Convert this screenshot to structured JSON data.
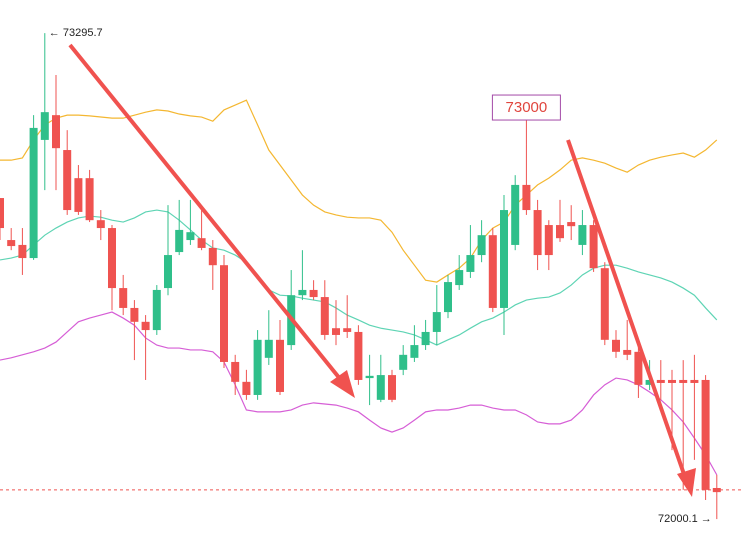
{
  "chart_data": {
    "type": "candlestick",
    "ylim": [
      71955,
      73384
    ],
    "up_color": "#2fbf8a",
    "down_color": "#ef5350",
    "open": [
      72856,
      72744,
      72731,
      72696,
      73011,
      73077,
      72984,
      72909,
      72909,
      72797,
      72776,
      72616,
      72563,
      72526,
      72504,
      72616,
      72712,
      72744,
      72749,
      72723,
      72677,
      72419,
      72366,
      72331,
      72430,
      72478,
      72464,
      72597,
      72611,
      72592,
      72509,
      72509,
      72499,
      72376,
      72318,
      72384,
      72398,
      72430,
      72464,
      72499,
      72552,
      72624,
      72659,
      72704,
      72757,
      72563,
      72731,
      72891,
      72824,
      72784,
      72784,
      72792,
      72731,
      72784,
      72669,
      72478,
      72451,
      72446,
      72358,
      72371,
      72371,
      72371,
      72371,
      72371,
      72083
    ],
    "high": [
      72856,
      72776,
      72776,
      73077,
      73295.7,
      73184,
      73037,
      72944,
      72931,
      72824,
      72784,
      72651,
      72584,
      72544,
      72624,
      72837,
      72851,
      72851,
      72824,
      72744,
      72704,
      72438,
      72398,
      72504,
      72557,
      72531,
      72664,
      72717,
      72637,
      72637,
      72584,
      72597,
      72517,
      72438,
      72438,
      72398,
      72464,
      72517,
      72531,
      72624,
      72651,
      72704,
      72784,
      72797,
      72776,
      72864,
      72917,
      73000,
      72851,
      72797,
      72851,
      72837,
      72824,
      72797,
      72685,
      72504,
      72531,
      72478,
      72424,
      72424,
      72398,
      72424,
      72438,
      72384,
      72118
    ],
    "low": [
      72744,
      72717,
      72651,
      72691,
      72877,
      72877,
      72811,
      72811,
      72792,
      72744,
      72557,
      72544,
      72424,
      72371,
      72491,
      72597,
      72704,
      72731,
      72717,
      72611,
      72403,
      72331,
      72318,
      72318,
      72411,
      72331,
      72451,
      72584,
      72584,
      72478,
      72464,
      72483,
      72358,
      72304,
      72312,
      72312,
      72384,
      72419,
      72451,
      72464,
      72536,
      72611,
      72643,
      72685,
      72552,
      72491,
      72717,
      72811,
      72664,
      72664,
      72739,
      72744,
      72704,
      72659,
      72464,
      72430,
      72424,
      72323,
      72344,
      72318,
      72184,
      72078,
      72158,
      72051,
      72000.1
    ],
    "close": [
      72776,
      72728,
      72696,
      73043,
      73085,
      72989,
      72824,
      72819,
      72797,
      72776,
      72616,
      72563,
      72526,
      72504,
      72611,
      72704,
      72771,
      72765,
      72723,
      72677,
      72419,
      72366,
      72331,
      72478,
      72478,
      72339,
      72597,
      72611,
      72592,
      72491,
      72491,
      72499,
      72371,
      72382,
      72384,
      72318,
      72438,
      72464,
      72499,
      72552,
      72632,
      72664,
      72704,
      72757,
      72563,
      72824,
      72891,
      72824,
      72704,
      72704,
      72749,
      72781,
      72784,
      72669,
      72478,
      72446,
      72438,
      72358,
      72371,
      72363,
      72363,
      72363,
      72363,
      72078,
      72072
    ],
    "series": [
      {
        "name": "upper",
        "color": "#f4b731",
        "values": [
          72957,
          72957,
          72963,
          73011,
          73051,
          73069,
          73077,
          73077,
          73075,
          73072,
          73069,
          73069,
          73077,
          73085,
          73091,
          73088,
          73080,
          73075,
          73072,
          73061,
          73091,
          73104,
          73117,
          73051,
          72984,
          72944,
          72904,
          72864,
          72837,
          72819,
          72811,
          72805,
          72803,
          72803,
          72797,
          72765,
          72717,
          72677,
          72637,
          72632,
          72651,
          72669,
          72696,
          72744,
          72776,
          72792,
          72837,
          72864,
          72891,
          72909,
          72931,
          72957,
          72963,
          72957,
          72949,
          72936,
          72925,
          72944,
          72957,
          72965,
          72971,
          72976,
          72965,
          72984,
          73011
        ]
      },
      {
        "name": "middle",
        "color": "#5ed4b4",
        "values": [
          72691,
          72696,
          72704,
          72731,
          72757,
          72776,
          72792,
          72803,
          72808,
          72805,
          72797,
          72792,
          72803,
          72819,
          72824,
          72819,
          72797,
          72771,
          72744,
          72723,
          72717,
          72704,
          72685,
          72651,
          72611,
          72597,
          72595,
          72589,
          72584,
          72579,
          72563,
          72544,
          72531,
          72517,
          72509,
          72504,
          72499,
          72491,
          72478,
          72464,
          72478,
          72491,
          72509,
          72526,
          72536,
          72552,
          72571,
          72584,
          72589,
          72592,
          72603,
          72624,
          72651,
          72669,
          72677,
          72677,
          72669,
          72659,
          72651,
          72643,
          72632,
          72616,
          72597,
          72563,
          72531
        ]
      },
      {
        "name": "lower",
        "color": "#d65ed6",
        "values": [
          72424,
          72430,
          72438,
          72446,
          72456,
          72472,
          72499,
          72526,
          72536,
          72544,
          72552,
          72536,
          72517,
          72483,
          72464,
          72456,
          72456,
          72451,
          72451,
          72446,
          72419,
          72358,
          72291,
          72286,
          72286,
          72286,
          72291,
          72304,
          72310,
          72307,
          72304,
          72296,
          72286,
          72264,
          72243,
          72232,
          72243,
          72264,
          72286,
          72291,
          72291,
          72296,
          72304,
          72304,
          72296,
          72291,
          72291,
          72278,
          72259,
          72254,
          72254,
          72264,
          72291,
          72331,
          72358,
          72376,
          72371,
          72358,
          72339,
          72318,
          72291,
          72259,
          72216,
          72171,
          72118
        ]
      }
    ],
    "price_line": 72078,
    "annotations": [
      {
        "text": "← 73295.7",
        "value": 73295.7,
        "index": 4
      },
      {
        "text": "72000.1 →",
        "value": 72000.1,
        "index": 64
      },
      {
        "text": "73000",
        "value": 73000,
        "index": 47
      }
    ]
  }
}
